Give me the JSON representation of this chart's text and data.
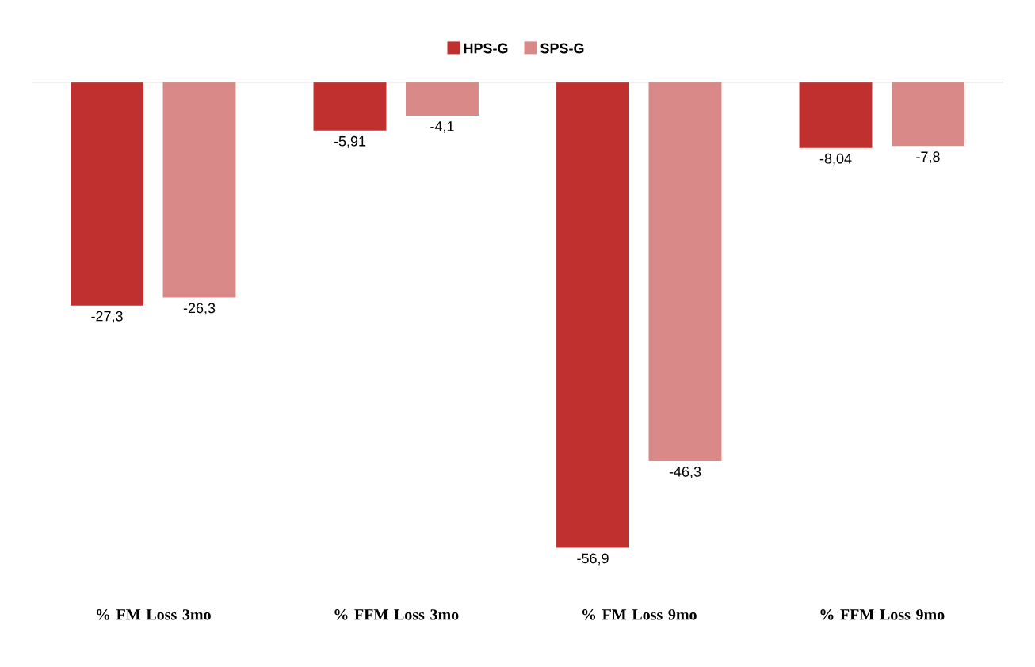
{
  "chart_data": {
    "type": "bar",
    "categories": [
      "% FM Loss 3mo",
      "% FFM Loss 3mo",
      "% FM Loss 9mo",
      "% FFM Loss 9mo"
    ],
    "series": [
      {
        "name": "HPS-G",
        "color": "#c0302e",
        "values": [
          -27.3,
          -5.91,
          -56.9,
          -8.04
        ],
        "value_labels": [
          "-27,3",
          "-5,91",
          "-56,9",
          "-8,04"
        ]
      },
      {
        "name": "SPS-G",
        "color": "#d98a88",
        "values": [
          -26.3,
          -4.1,
          -46.3,
          -7.8
        ],
        "value_labels": [
          "-26,3",
          "-4,1",
          "-46,3",
          "-7,8"
        ]
      }
    ],
    "legend": "top"
  }
}
